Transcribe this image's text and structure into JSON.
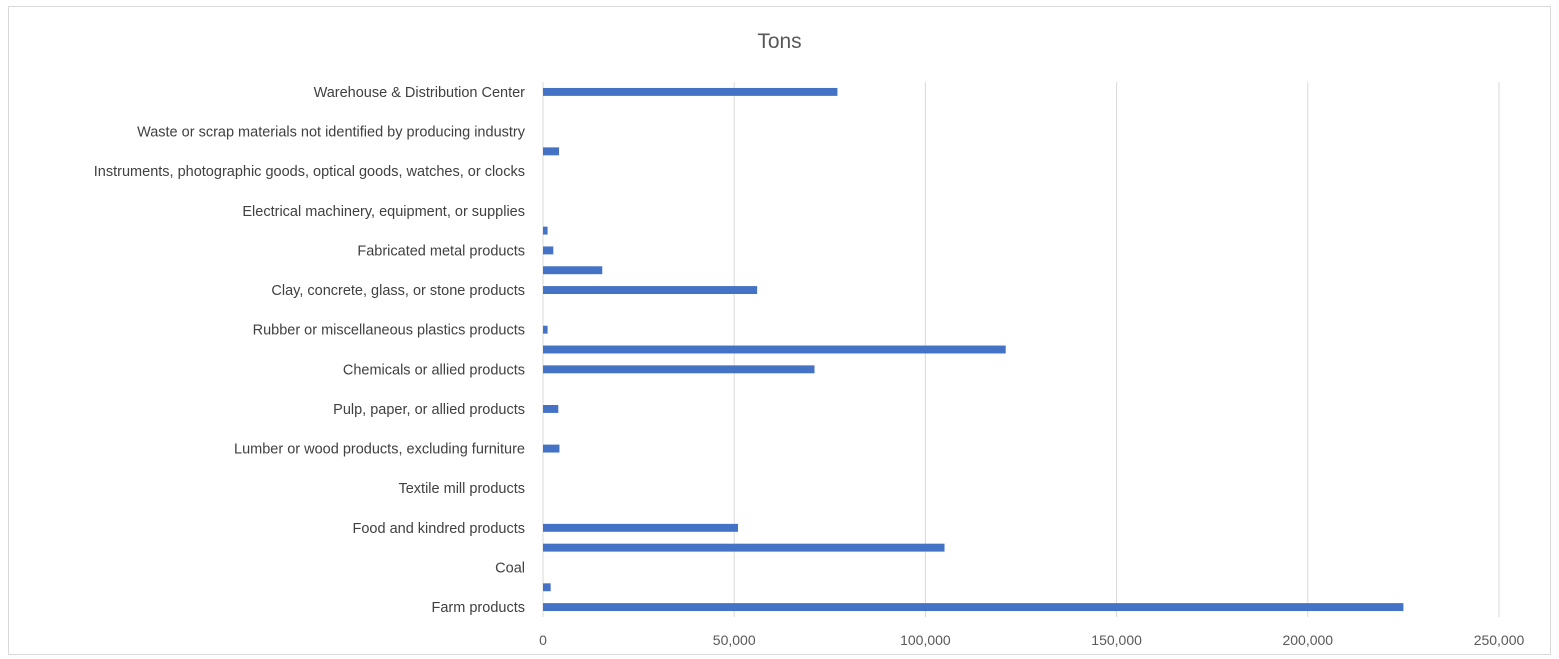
{
  "chart_data": {
    "type": "bar",
    "orientation": "horizontal",
    "title": "Tons",
    "xlabel": "",
    "ylabel": "",
    "xlim": [
      0,
      250000
    ],
    "x_ticks": [
      "0",
      "50,000",
      "100,000",
      "150,000",
      "200,000",
      "250,000"
    ],
    "x_tick_values": [
      0,
      50000,
      100000,
      150000,
      200000,
      250000
    ],
    "grid": "vertical",
    "bar_color": "#4472c4",
    "categories": [
      "Farm products",
      "",
      "Coal",
      "",
      "Food and kindred products",
      "",
      "Textile mill products",
      "",
      "Lumber or wood products, excluding furniture",
      "",
      "Pulp, paper, or allied products",
      "",
      "Chemicals or allied products",
      "",
      "Rubber or miscellaneous plastics products",
      "",
      "Clay, concrete, glass, or stone products",
      "",
      "Fabricated metal products",
      "",
      "Electrical machinery, equipment, or supplies",
      "",
      "Instruments, photographic goods, optical goods, watches, or clocks",
      "",
      "Waste or scrap materials not identified by producing industry",
      "",
      "Warehouse & Distribution Center"
    ],
    "values": [
      225000,
      2000,
      0,
      105000,
      51000,
      0,
      0,
      0,
      4300,
      0,
      4000,
      0,
      71000,
      121000,
      1200,
      0,
      56000,
      15500,
      2700,
      1200,
      0,
      0,
      0,
      4200,
      0,
      0,
      77000
    ]
  }
}
